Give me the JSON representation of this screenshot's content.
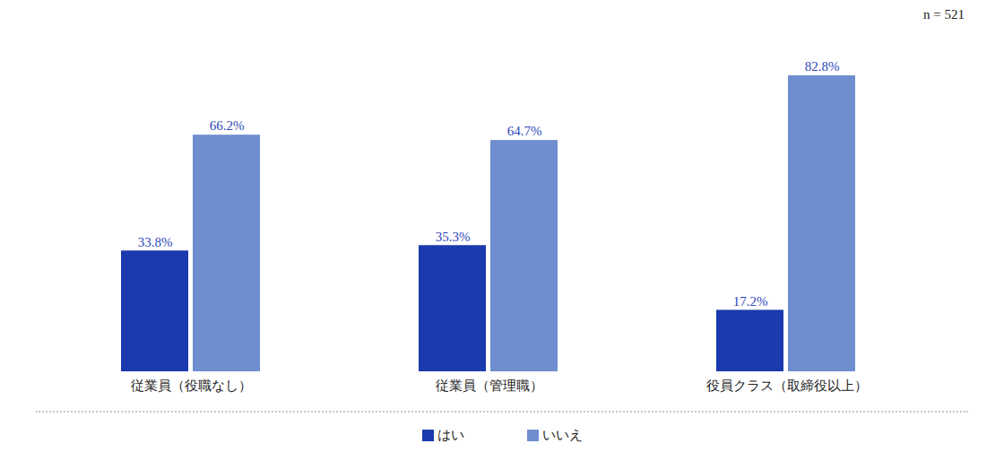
{
  "chart_data": {
    "type": "bar",
    "annotations": [
      "n = 521"
    ],
    "categories": [
      "従業員（役職なし）",
      "従業員（管理職）",
      "役員クラス（取締役以上）"
    ],
    "series": [
      {
        "name": "はい",
        "color": "#1a3aad",
        "values": [
          33.8,
          35.3,
          17.2
        ],
        "value_labels": [
          "33.8%",
          "35.3%",
          "17.2%"
        ]
      },
      {
        "name": "いいえ",
        "color": "#6f8ecf",
        "values": [
          66.2,
          64.7,
          82.8
        ],
        "value_labels": [
          "66.2%",
          "64.7%",
          "82.8%"
        ]
      }
    ],
    "data_labels": true,
    "tick_labels": "x",
    "legend": "bottom"
  }
}
